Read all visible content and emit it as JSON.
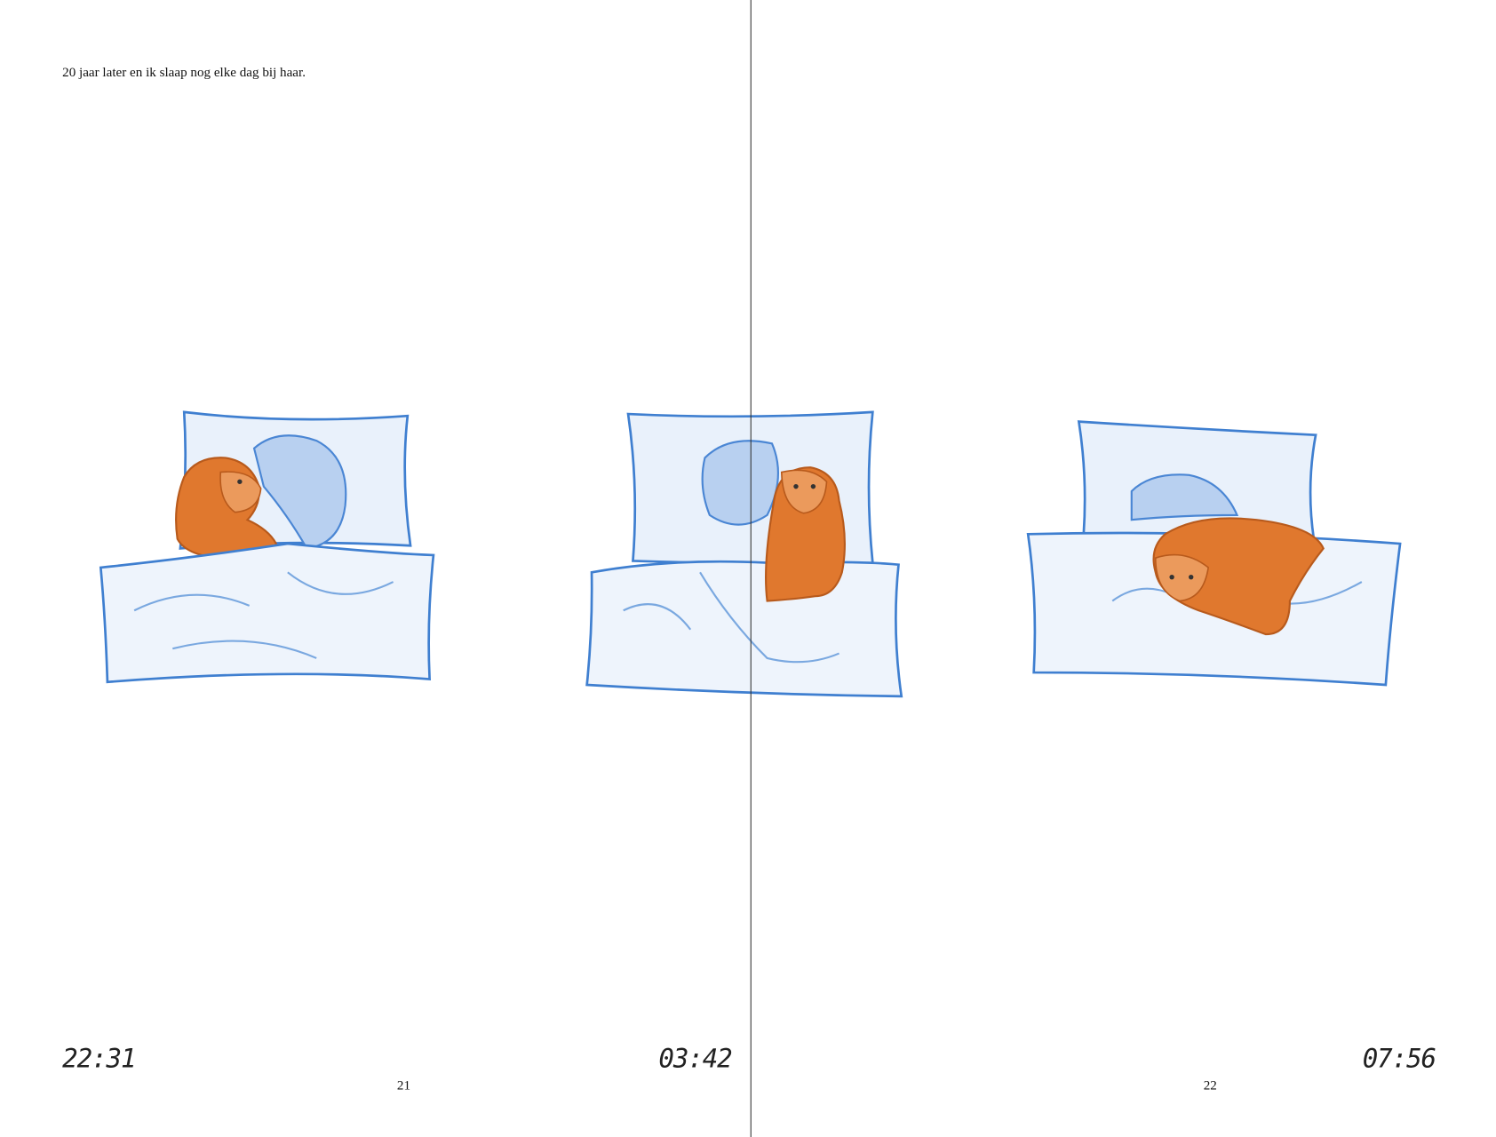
{
  "pages": [
    {
      "text": "20 jaar later en ik slaap nog elke dag bij haar.",
      "clocks": [
        "22:31",
        "03:42"
      ],
      "number": "21"
    },
    {
      "clocks": [
        "07:56"
      ],
      "number": "22"
    }
  ]
}
